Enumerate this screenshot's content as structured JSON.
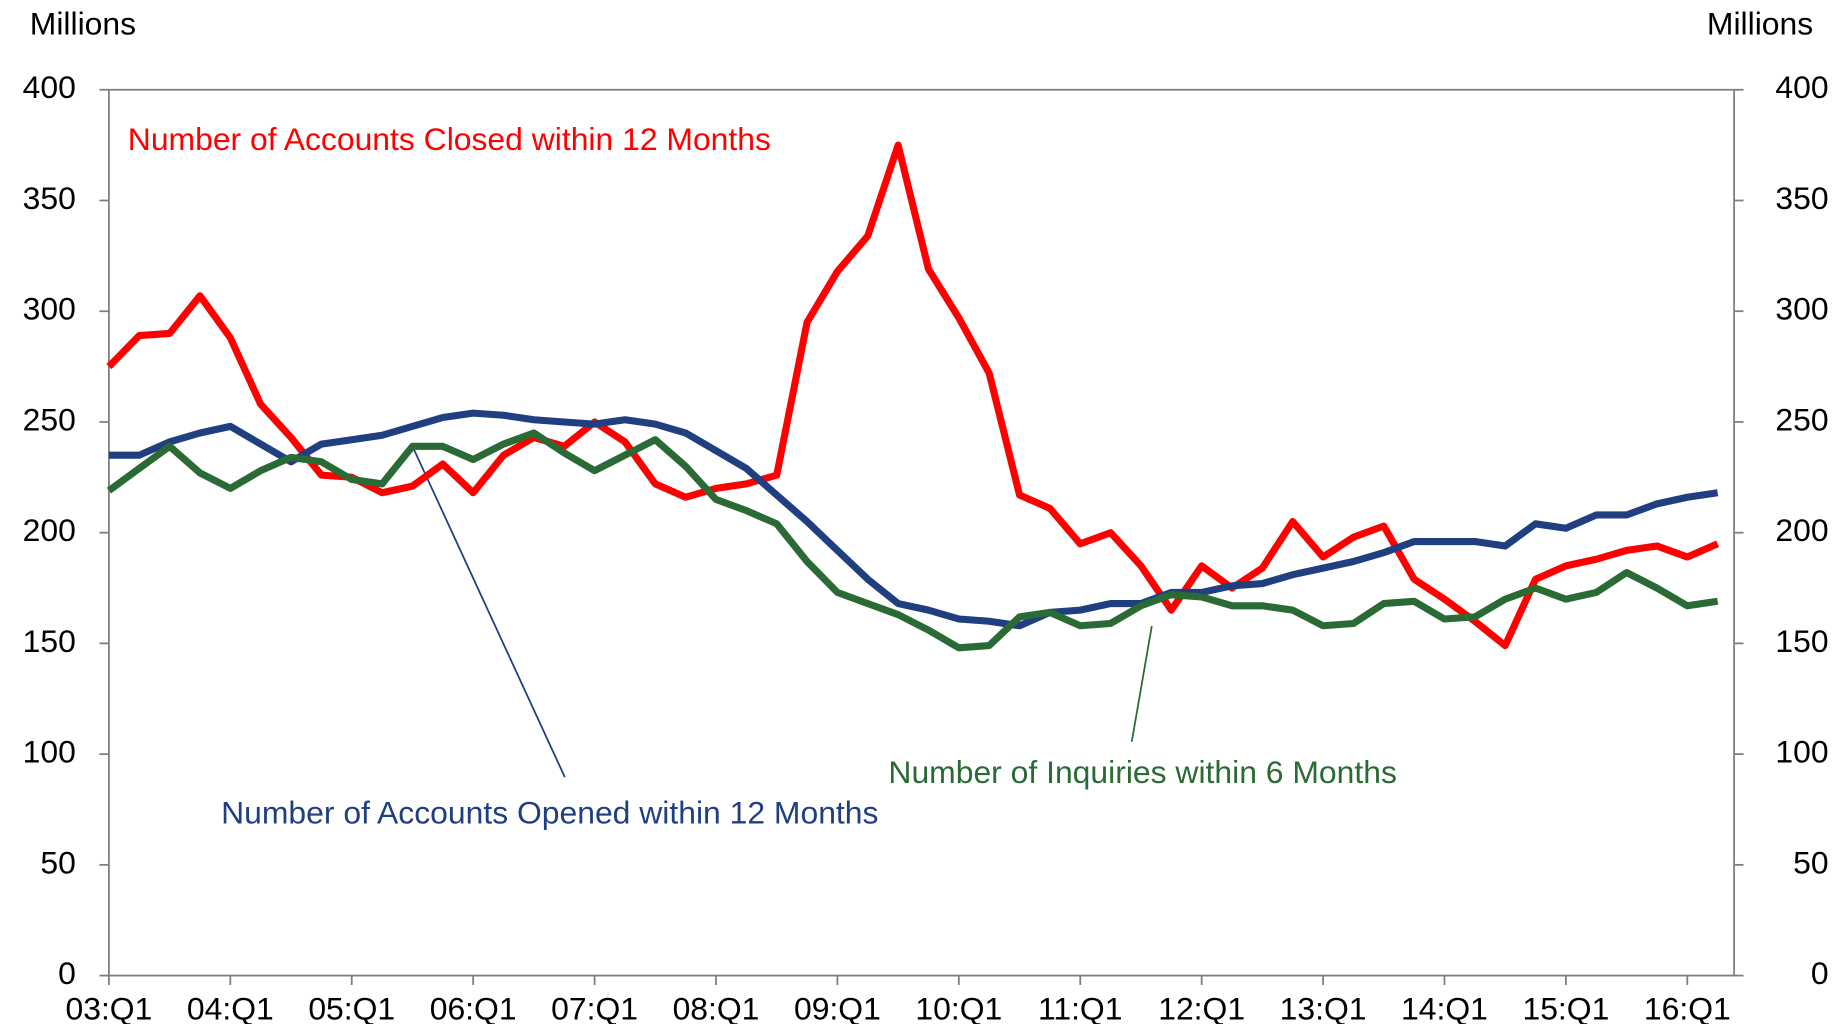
{
  "chart_data": {
    "type": "line",
    "ylabel": "Millions",
    "y2label": "Millions",
    "categories": [
      "03:Q1",
      null,
      null,
      null,
      "04:Q1",
      null,
      null,
      null,
      "05:Q1",
      null,
      null,
      null,
      "06:Q1",
      null,
      null,
      null,
      "07:Q1",
      null,
      null,
      null,
      "08:Q1",
      null,
      null,
      null,
      "09:Q1",
      null,
      null,
      null,
      "10:Q1",
      null,
      null,
      null,
      "11:Q1",
      null,
      null,
      null,
      "12:Q1",
      null,
      null,
      null,
      "13:Q1",
      null,
      null,
      null,
      "14:Q1",
      null,
      null,
      null,
      "15:Q1",
      null,
      null,
      null,
      "16:Q1",
      null
    ],
    "series": [
      {
        "name": "Number of Accounts Closed within 12 Months",
        "color": "#ff0000",
        "values": [
          275,
          289,
          290,
          307,
          288,
          258,
          243,
          226,
          225,
          218,
          221,
          231,
          218,
          235,
          243,
          239,
          250,
          241,
          222,
          216,
          220,
          222,
          226,
          295,
          318,
          334,
          375,
          319,
          297,
          272,
          217,
          211,
          195,
          200,
          185,
          165,
          185,
          175,
          184,
          205,
          189,
          198,
          203,
          179,
          170,
          160,
          149,
          179,
          185,
          188,
          192,
          194,
          189,
          195
        ]
      },
      {
        "name": "Number of Accounts Opened within 12 Months",
        "color": "#1f3f80",
        "values": [
          235,
          235,
          241,
          245,
          248,
          240,
          232,
          240,
          242,
          244,
          248,
          252,
          254,
          253,
          251,
          250,
          249,
          251,
          249,
          245,
          237,
          229,
          217,
          205,
          192,
          179,
          168,
          165,
          161,
          160,
          158,
          164,
          165,
          168,
          168,
          173,
          173,
          176,
          177,
          181,
          184,
          187,
          191,
          196,
          196,
          196,
          194,
          204,
          202,
          208,
          208,
          213,
          216,
          218
        ]
      },
      {
        "name": "Number of Inquiries within 6 Months",
        "color": "#2a6a34",
        "values": [
          219,
          229,
          239,
          227,
          220,
          228,
          234,
          232,
          224,
          222,
          239,
          239,
          233,
          240,
          245,
          236,
          228,
          235,
          242,
          230,
          215,
          210,
          204,
          187,
          173,
          168,
          163,
          156,
          148,
          149,
          162,
          164,
          158,
          159,
          167,
          172,
          171,
          167,
          167,
          165,
          158,
          159,
          168,
          169,
          161,
          162,
          170,
          175,
          170,
          173,
          182,
          175,
          167,
          169
        ]
      }
    ],
    "ylim": [
      0,
      400
    ],
    "yticks": [
      0,
      50,
      100,
      150,
      200,
      250,
      300,
      350,
      400
    ],
    "y2lim": [
      0,
      400
    ],
    "y2ticks": [
      0,
      50,
      100,
      150,
      200,
      250,
      300,
      350,
      400
    ],
    "grid": false
  }
}
